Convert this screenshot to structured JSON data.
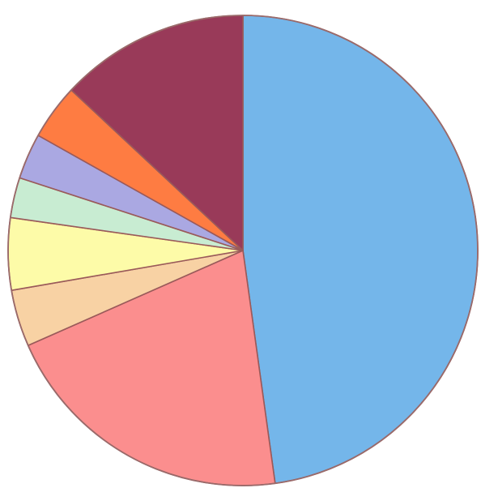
{
  "chart_data": {
    "type": "pie",
    "title": "",
    "start_angle_deg": 0,
    "direction": "clockwise",
    "legend": "none",
    "slices": [
      {
        "value": 50.2,
        "color": "#74b6ea"
      },
      {
        "value": 21.6,
        "color": "#fb8e8e"
      },
      {
        "value": 4.1,
        "color": "#f8d2a4"
      },
      {
        "value": 5.2,
        "color": "#fdfba8"
      },
      {
        "value": 2.9,
        "color": "#c8ecd2"
      },
      {
        "value": 3.3,
        "color": "#aaa8e2"
      },
      {
        "value": 4.0,
        "color": "#fe7c42"
      },
      {
        "value": 13.7,
        "color": "#993a59"
      }
    ]
  }
}
